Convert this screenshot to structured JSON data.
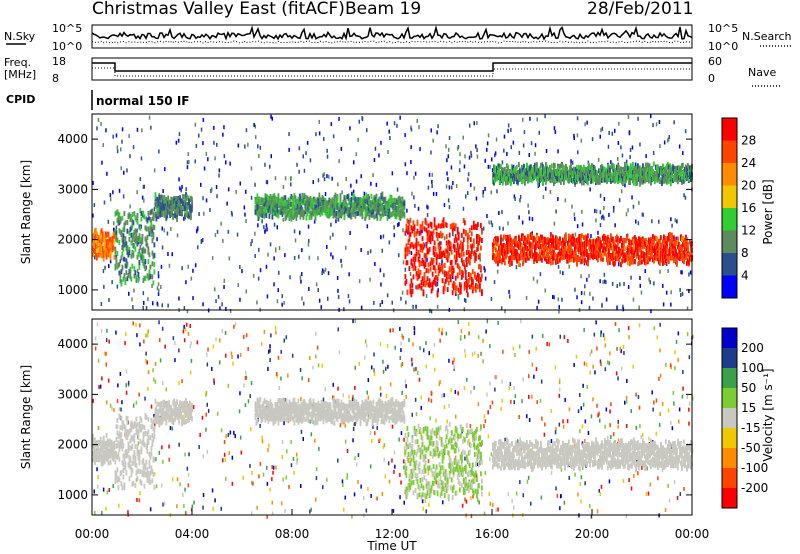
{
  "header": {
    "station": "Christmas Valley East (fitACF)",
    "beam": "Beam 19",
    "date": "28/Feb/2011"
  },
  "top_panels": {
    "nsky_label": "N.Sky",
    "nsky_ticks": [
      "10^5",
      "10^0"
    ],
    "nsearch_label": "N.Search",
    "nsearch_ticks": [
      "10^5",
      "10^0"
    ],
    "freq_label_1": "Freq.",
    "freq_label_2": "[MHz]",
    "freq_ticks": [
      "18",
      "8"
    ],
    "nave_label": "Nave",
    "nave_ticks": [
      "60",
      "0"
    ],
    "cpid_label": "CPID",
    "cpid_value": "normal 150 IF"
  },
  "colors": {
    "power_scale": [
      "#0000ff",
      "#2a4f8f",
      "#5c8c5c",
      "#32cd32",
      "#f0c800",
      "#ff8c00",
      "#ff4500",
      "#ff0000"
    ],
    "velocity_scale": [
      "#0000cd",
      "#1e3c8c",
      "#3aa04a",
      "#7ccd32",
      "#c8c8c0",
      "#f0c800",
      "#ff8c00",
      "#ff4500",
      "#ff0000"
    ]
  },
  "chart_data": [
    {
      "type": "heatmap",
      "panel": "power",
      "ylabel": "Slant Range [km]",
      "yticks": [
        "1000",
        "2000",
        "3000",
        "4000"
      ],
      "ylim": [
        600,
        4500
      ],
      "colorbar_label": "Power [dB]",
      "colorbar_ticks": [
        "28",
        "24",
        "20",
        "16",
        "12",
        "8",
        "4"
      ],
      "clim": [
        0,
        30
      ],
      "x_range_hours": [
        0,
        24
      ],
      "echo_bands": [
        {
          "t": [
            0.0,
            0.9
          ],
          "range_km": [
            1700,
            2200
          ],
          "level": 22
        },
        {
          "t": [
            0.9,
            2.5
          ],
          "range_km": [
            1200,
            2600
          ],
          "level": 10
        },
        {
          "t": [
            2.5,
            4.0
          ],
          "range_km": [
            2500,
            2900
          ],
          "level": 8
        },
        {
          "t": [
            6.5,
            12.5
          ],
          "range_km": [
            2500,
            2900
          ],
          "level": 10
        },
        {
          "t": [
            12.5,
            15.6
          ],
          "range_km": [
            1000,
            2400
          ],
          "level": 27
        },
        {
          "t": [
            16.0,
            24.0
          ],
          "range_km": [
            1600,
            2100
          ],
          "level": 26
        },
        {
          "t": [
            16.0,
            24.0
          ],
          "range_km": [
            3200,
            3500
          ],
          "level": 10
        }
      ]
    },
    {
      "type": "heatmap",
      "panel": "velocity",
      "xlabel": "Time UT",
      "ylabel": "Slant Range [km]",
      "yticks": [
        "1000",
        "2000",
        "3000",
        "4000"
      ],
      "ylim": [
        600,
        4500
      ],
      "xticks": [
        "00:00",
        "04:00",
        "08:00",
        "12:00",
        "16:00",
        "20:00",
        "00:00"
      ],
      "colorbar_label": "Velocity [m s⁻¹]",
      "colorbar_ticks": [
        "200",
        "100",
        "50",
        "15",
        "-15",
        "-50",
        "-100",
        "-200"
      ],
      "clim": [
        -250,
        250
      ],
      "x_range_hours": [
        0,
        24
      ],
      "echo_bands": [
        {
          "t": [
            0.0,
            0.9
          ],
          "range_km": [
            1700,
            2200
          ],
          "level": 0
        },
        {
          "t": [
            0.9,
            2.5
          ],
          "range_km": [
            1200,
            2600
          ],
          "level": 5
        },
        {
          "t": [
            2.5,
            4.0
          ],
          "range_km": [
            2500,
            2900
          ],
          "level": 0
        },
        {
          "t": [
            6.5,
            12.5
          ],
          "range_km": [
            2500,
            2900
          ],
          "level": 0
        },
        {
          "t": [
            12.5,
            15.6
          ],
          "range_km": [
            1000,
            2400
          ],
          "level": 30
        },
        {
          "t": [
            16.0,
            24.0
          ],
          "range_km": [
            1600,
            2100
          ],
          "level": 0
        }
      ]
    }
  ]
}
